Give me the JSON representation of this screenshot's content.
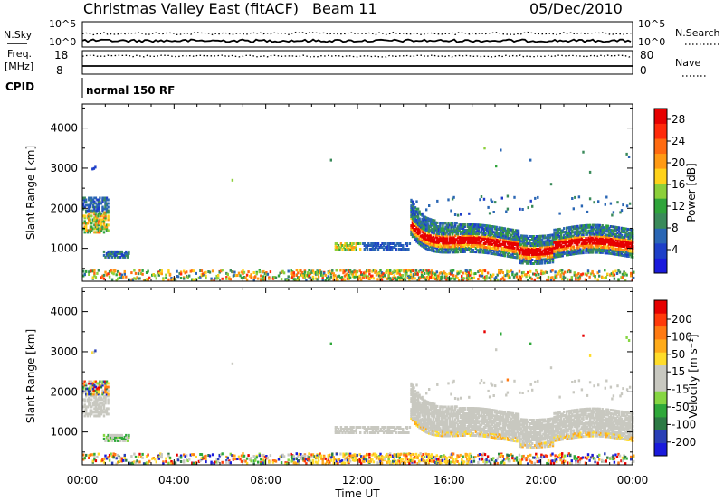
{
  "header": {
    "station": "Christmas Valley East (fitACF)",
    "beam": "Beam 11",
    "date": "05/Dec/2010"
  },
  "strip_panels": {
    "nsky": {
      "label": "N.Sky",
      "tick_top": "10^5",
      "tick_bottom": "10^0",
      "right_label": "N.Search",
      "right_tick_top": "10^5",
      "right_tick_bottom": "10^0"
    },
    "freq": {
      "label_line1": "Freq.",
      "label_line2": "[MHz]",
      "tick_top": "18",
      "tick_bottom": "8",
      "right_label": "Nave",
      "right_tick_top": "80",
      "right_tick_bottom": "0"
    },
    "cpid": {
      "label": "CPID",
      "value": "normal 150 RF"
    }
  },
  "colors": {
    "power_scale": [
      "#1a1adc",
      "#1e3fc8",
      "#2a66b4",
      "#3a8a5a",
      "#2fa43a",
      "#8ccf3a",
      "#ffd21a",
      "#ff9a14",
      "#ff6a10",
      "#ff2a0a",
      "#e60000"
    ],
    "velocity_scale": [
      "#1a1adc",
      "#2a3fb6",
      "#2d7a45",
      "#2fa83a",
      "#86d642",
      "#c8c8c0",
      "#c8c8c0",
      "#ffdc2a",
      "#ffab1a",
      "#ff7a12",
      "#ff3a0a",
      "#e60000"
    ],
    "ground_scatter": "#c8c8c0"
  },
  "chart_data": [
    {
      "type": "heatmap",
      "name": "power",
      "xlabel": "",
      "ylabel": "Slant Range [km]",
      "ylim": [
        180,
        4600
      ],
      "xlim": [
        0,
        24
      ],
      "x_ticks": [
        "00:00",
        "04:00",
        "08:00",
        "12:00",
        "16:00",
        "20:00",
        "00:00"
      ],
      "y_ticks": [
        1000,
        2000,
        3000,
        4000
      ],
      "colorbar_label": "Power [dB]",
      "colorbar_ticks": [
        "4",
        "8",
        "12",
        "16",
        "20",
        "24",
        "28"
      ],
      "colorbar_range": [
        0,
        30
      ]
    },
    {
      "type": "heatmap",
      "name": "velocity",
      "xlabel": "Time UT",
      "ylabel": "Slant Range [km]",
      "ylim": [
        180,
        4600
      ],
      "xlim": [
        0,
        24
      ],
      "x_ticks": [
        "00:00",
        "04:00",
        "08:00",
        "12:00",
        "16:00",
        "20:00",
        "00:00"
      ],
      "y_ticks": [
        1000,
        2000,
        3000,
        4000
      ],
      "colorbar_label": "Velocity [m s⁻¹]",
      "colorbar_ticks": [
        "200",
        "100",
        "50",
        "15",
        "-15",
        "-50",
        "-100",
        "-200"
      ]
    }
  ]
}
